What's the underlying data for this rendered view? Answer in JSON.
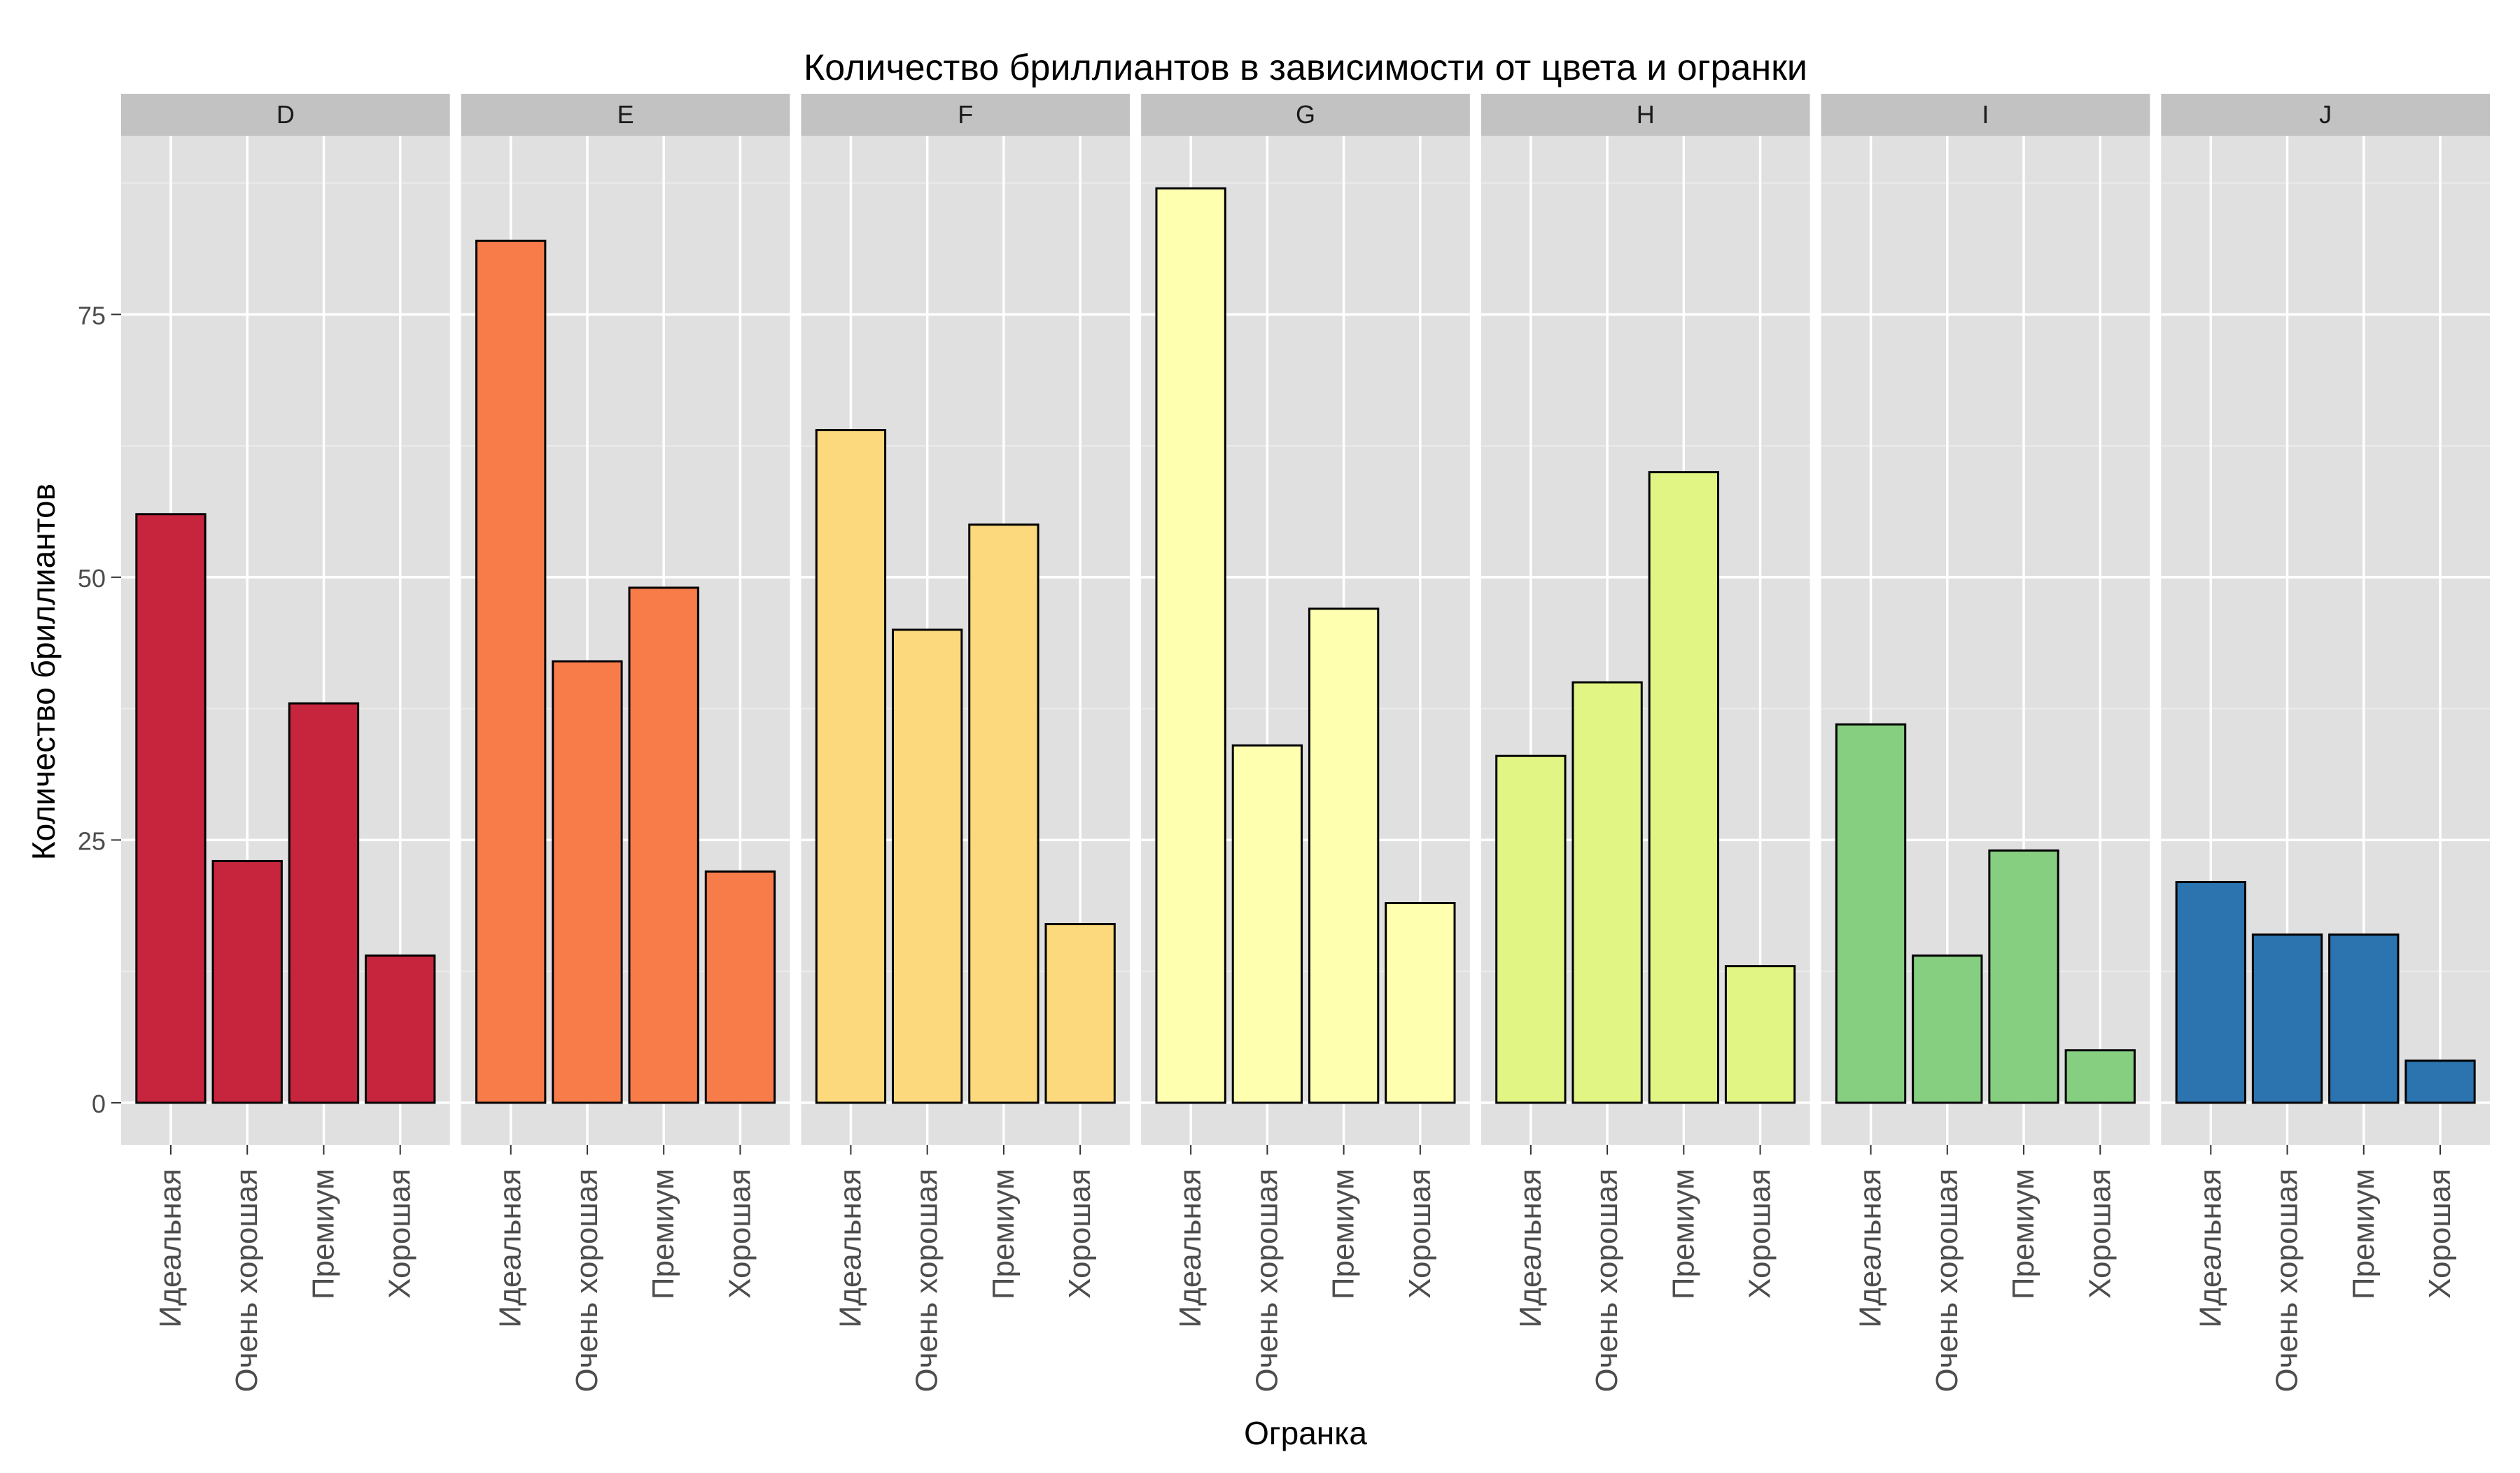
{
  "chart_data": {
    "type": "bar",
    "title": "Количество бриллиантов в зависимости от цвета и огранки",
    "xlabel": "Огранка",
    "ylabel": "Количество бриллиантов",
    "ylim": [
      -4,
      92
    ],
    "yticks": [
      0,
      25,
      50,
      75
    ],
    "grid": true,
    "facet_by": "color",
    "categories": [
      "Идеальная",
      "Очень хорошая",
      "Премиум",
      "Хорошая"
    ],
    "panels": [
      {
        "name": "D",
        "color": "#C7253E",
        "values": [
          56,
          23,
          38,
          14
        ]
      },
      {
        "name": "E",
        "color": "#F87C4A",
        "values": [
          82,
          42,
          49,
          22
        ]
      },
      {
        "name": "F",
        "color": "#FCD97C",
        "values": [
          64,
          45,
          55,
          17
        ]
      },
      {
        "name": "G",
        "color": "#FFFFB0",
        "values": [
          87,
          34,
          47,
          19
        ]
      },
      {
        "name": "H",
        "color": "#E1F584",
        "values": [
          33,
          40,
          60,
          13
        ]
      },
      {
        "name": "I",
        "color": "#86CE80",
        "values": [
          36,
          14,
          24,
          5
        ]
      },
      {
        "name": "J",
        "color": "#2B74B0",
        "values": [
          21,
          16,
          16,
          4
        ]
      }
    ]
  }
}
